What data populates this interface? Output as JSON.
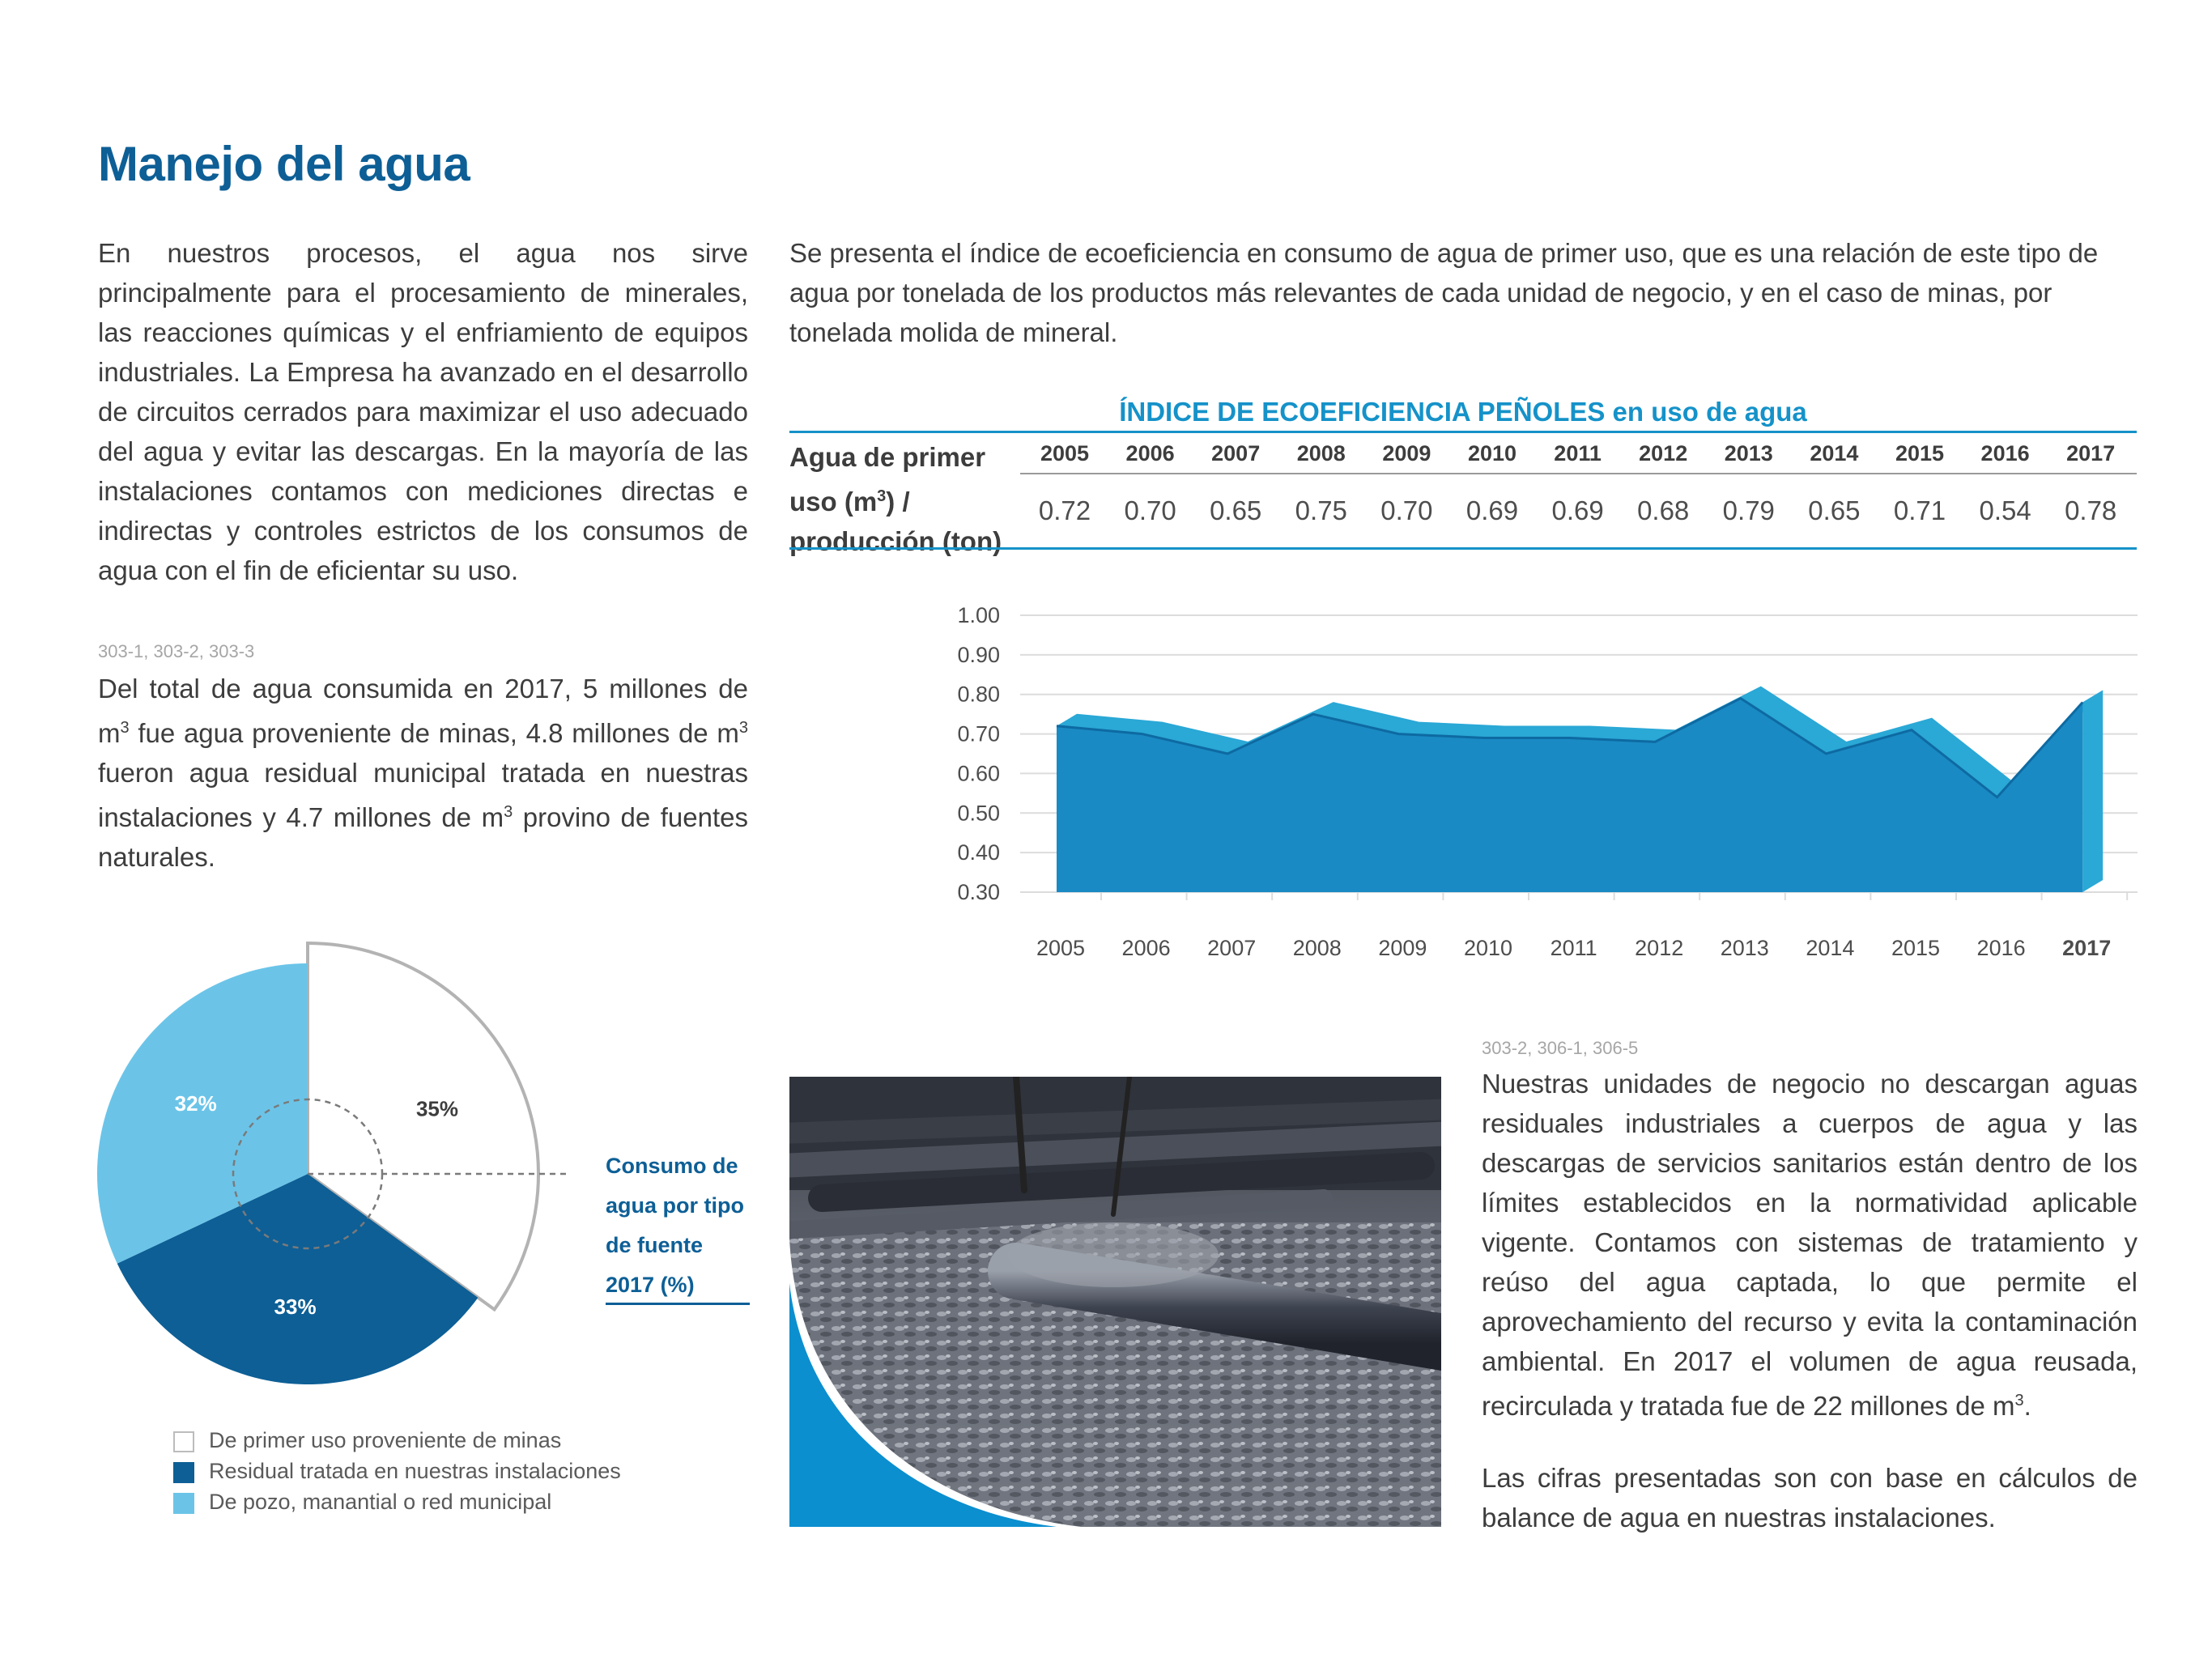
{
  "title": "Manejo del agua",
  "left_paragraph": "En nuestros procesos, el agua nos sirve principalmente para el procesamiento de minerales, las reacciones químicas y el enfriamiento de equipos industriales. La Empresa ha avanzado en el desarrollo de circuitos cerrados para maximizar el uso adecuado del agua y evitar las descargas. En la mayoría de las instalaciones contamos con mediciones directas e indirectas y controles estrictos de los consumos de agua con el fin de eficientar su uso.",
  "right_paragraph": "Se presenta el índice de ecoeficiencia en consumo de agua de primer uso, que es una relación de este tipo de agua por tonelada de los productos más relevantes de cada unidad de negocio, y en el caso de minas, por tonelada molida de mineral.",
  "gri_ref_1": "303-1, 303-2, 303-3",
  "left_paragraph_2": {
    "part1": "Del total de agua consumida en 2017, 5 millones de m",
    "part2": " fue agua proveniente de minas, 4.8 millones de m",
    "part3": " fueron agua residual municipal tratada en nuestras instalaciones y 4.7 millones de m",
    "part4": " provino de fuentes naturales.",
    "sup": "3"
  },
  "gri_ref_2": "303-2, 306-1, 306-5",
  "right_paragraph_2": {
    "part1": "Nuestras unidades de negocio no descargan aguas residuales industriales a cuerpos de agua y las descargas de servicios sanitarios están dentro de los límites establecidos en la normatividad aplicable vigente. Contamos con sistemas de tratamiento y reúso del agua captada, lo que permite el aprovechamiento del recurso y evita la contaminación ambiental. En 2017 el volumen de agua reusada, recirculada y tratada fue de 22 millones de m",
    "sup": "3",
    "part2": "."
  },
  "right_paragraph_3": "Las cifras presentadas son con base en cálculos de balance de agua en nuestras instalaciones.",
  "table": {
    "title": "ÍNDICE DE ECOEFICIENCIA PEÑOLES en uso de agua",
    "row_label_line1": "Agua de primer",
    "row_label_line2a": "uso (m",
    "row_label_sup": "3",
    "row_label_line2b": ") /",
    "row_label_line3": "producción (ton)",
    "years": [
      "2005",
      "2006",
      "2007",
      "2008",
      "2009",
      "2010",
      "2011",
      "2012",
      "2013",
      "2014",
      "2015",
      "2016",
      "2017"
    ],
    "values": [
      "0.72",
      "0.70",
      "0.65",
      "0.75",
      "0.70",
      "0.69",
      "0.69",
      "0.68",
      "0.79",
      "0.65",
      "0.71",
      "0.54",
      "0.78"
    ]
  },
  "chart_data": [
    {
      "type": "area",
      "x": [
        "2005",
        "2006",
        "2007",
        "2008",
        "2009",
        "2010",
        "2011",
        "2012",
        "2013",
        "2014",
        "2015",
        "2016",
        "2017"
      ],
      "values": [
        0.72,
        0.7,
        0.65,
        0.75,
        0.7,
        0.69,
        0.69,
        0.68,
        0.79,
        0.65,
        0.71,
        0.54,
        0.78
      ],
      "yticks": [
        "1.00",
        "0.90",
        "0.80",
        "0.70",
        "0.60",
        "0.50",
        "0.40",
        "0.30"
      ],
      "ylim": [
        0.3,
        1.0
      ],
      "highlight_x": "2017",
      "grid": true,
      "colors": {
        "area": "#1a8ac4",
        "top": "#2aa8d6",
        "line": "#0e6aa2"
      }
    },
    {
      "type": "pie",
      "title": "Consumo de agua por tipo de fuente 2017 (%)",
      "slices": [
        {
          "name": "De primer uso proveniente de minas",
          "value": 35,
          "label": "35%",
          "color": "#ffffff"
        },
        {
          "name": "Residual tratada en nuestras instalaciones",
          "value": 33,
          "label": "33%",
          "color": "#0d5f96"
        },
        {
          "name": "De pozo, manantial o red municipal",
          "value": 32,
          "label": "32%",
          "color": "#6bc4e8"
        }
      ]
    }
  ],
  "pie_caption": [
    "Consumo de",
    "agua por tipo",
    "de fuente",
    "2017 (%)"
  ],
  "legend": [
    {
      "label": "De primer uso proveniente de minas",
      "color": "#ffffff"
    },
    {
      "label": "Residual tratada en nuestras instalaciones",
      "color": "#0d5f96"
    },
    {
      "label": "De pozo, manantial o red municipal",
      "color": "#6bc4e8"
    }
  ]
}
